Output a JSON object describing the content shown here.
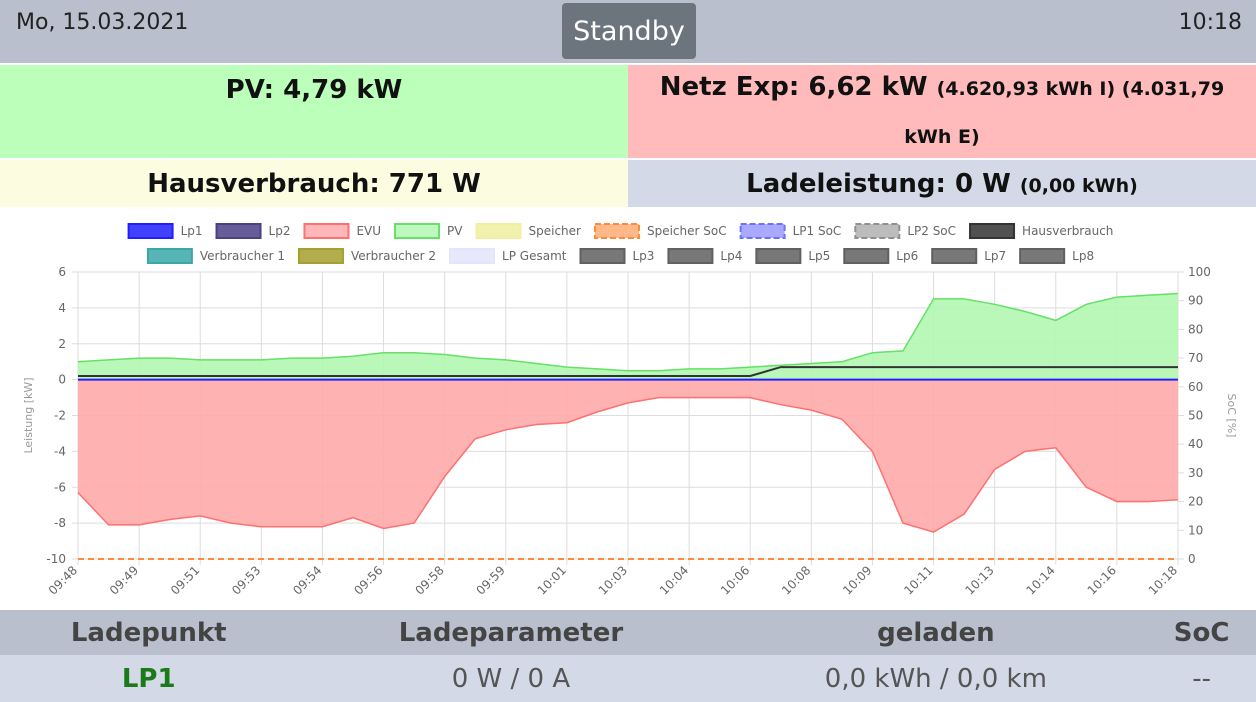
{
  "header": {
    "date": "Mo, 15.03.2021",
    "status": "Standby",
    "time": "10:18"
  },
  "tiles": {
    "pv": "PV: 4,79 kW",
    "netz": {
      "main": "Netz Exp: 6,62 kW",
      "detail": "(4.620,93 kWh I) (4.031,79 kWh E)"
    },
    "haus": "Hausverbrauch: 771 W",
    "lade": {
      "main": "Ladeleistung: 0 W",
      "detail": "(0,00 kWh)"
    }
  },
  "chart_data": {
    "type": "line",
    "ylabel": "Leistung [kW]",
    "y2label": "SoC [%]",
    "categories": [
      "09:48",
      null,
      "09:49",
      null,
      "09:51",
      null,
      "09:53",
      null,
      "09:54",
      null,
      "09:56",
      null,
      "09:58",
      null,
      "09:59",
      null,
      "10:01",
      null,
      "10:03",
      null,
      "10:04",
      null,
      "10:06",
      null,
      "10:08",
      null,
      "10:09",
      null,
      "10:11",
      null,
      "10:13",
      null,
      "10:14",
      null,
      "10:16",
      null,
      "10:18"
    ],
    "ylim": [
      -10,
      6
    ],
    "yticks": [
      -10,
      -8,
      -6,
      -4,
      -2,
      0,
      2,
      4,
      6
    ],
    "y2lim": [
      0,
      100
    ],
    "y2ticks": [
      0,
      10,
      20,
      30,
      40,
      50,
      60,
      70,
      80,
      90,
      100
    ],
    "grid": true,
    "series": [
      {
        "name": "Lp1",
        "color": "#2020ff",
        "style": "line",
        "values": [
          0,
          0,
          0,
          0,
          0,
          0,
          0,
          0,
          0,
          0,
          0,
          0,
          0,
          0,
          0,
          0,
          0,
          0,
          0,
          0,
          0,
          0,
          0,
          0,
          0,
          0,
          0,
          0,
          0,
          0,
          0,
          0,
          0,
          0,
          0,
          0,
          0
        ]
      },
      {
        "name": "Lp2",
        "color": "#4b3f86"
      },
      {
        "name": "EVU",
        "color": "#ff7070",
        "fill": "#ffaaaa",
        "style": "area",
        "values": [
          -6.3,
          -8.1,
          -8.1,
          -7.8,
          -7.6,
          -8.0,
          -8.2,
          -8.2,
          -8.2,
          -7.7,
          -8.3,
          -8.0,
          -5.4,
          -3.3,
          -2.8,
          -2.5,
          -2.4,
          -1.8,
          -1.3,
          -1.0,
          -1.0,
          -1.0,
          -1.0,
          -1.4,
          -1.7,
          -2.2,
          -4.0,
          -8.0,
          -8.5,
          -7.5,
          -5.0,
          -4.0,
          -3.8,
          -6.0,
          -6.8,
          -6.8,
          -6.7
        ]
      },
      {
        "name": "PV",
        "color": "#66e066",
        "fill": "#b3f7b3",
        "style": "area",
        "values": [
          1.0,
          1.1,
          1.2,
          1.2,
          1.1,
          1.1,
          1.1,
          1.2,
          1.2,
          1.3,
          1.5,
          1.5,
          1.4,
          1.2,
          1.1,
          0.9,
          0.7,
          0.6,
          0.5,
          0.5,
          0.6,
          0.6,
          0.7,
          0.8,
          0.9,
          1.0,
          1.5,
          1.6,
          4.5,
          4.5,
          4.2,
          3.8,
          3.3,
          4.2,
          4.6,
          4.7,
          4.8
        ]
      },
      {
        "name": "Speicher",
        "color": "#f0f0a0"
      },
      {
        "name": "Speicher SoC",
        "color": "#ff8a3a",
        "dashed": true,
        "style": "line",
        "axis": "y2",
        "values": [
          0,
          0,
          0,
          0,
          0,
          0,
          0,
          0,
          0,
          0,
          0,
          0,
          0,
          0,
          0,
          0,
          0,
          0,
          0,
          0,
          0,
          0,
          0,
          0,
          0,
          0,
          0,
          0,
          0,
          0,
          0,
          0,
          0,
          0,
          0,
          0,
          0
        ]
      },
      {
        "name": "LP1 SoC",
        "color": "#6f6fff",
        "dashed": true
      },
      {
        "name": "LP2 SoC",
        "color": "#909090",
        "dashed": true
      },
      {
        "name": "Hausverbrauch",
        "color": "#333333",
        "style": "line",
        "values": [
          0.2,
          0.2,
          0.2,
          0.2,
          0.2,
          0.2,
          0.2,
          0.2,
          0.2,
          0.2,
          0.2,
          0.2,
          0.2,
          0.2,
          0.2,
          0.2,
          0.2,
          0.2,
          0.2,
          0.2,
          0.2,
          0.2,
          0.2,
          0.7,
          0.7,
          0.7,
          0.7,
          0.7,
          0.7,
          0.7,
          0.7,
          0.7,
          0.7,
          0.7,
          0.7,
          0.7,
          0.7
        ]
      },
      {
        "name": "Verbraucher 1",
        "color": "#3aa8a8"
      },
      {
        "name": "Verbraucher 2",
        "color": "#a5a030"
      },
      {
        "name": "LP Gesamt",
        "color": "#e4e4fb"
      },
      {
        "name": "Lp3",
        "color": "#606060"
      },
      {
        "name": "Lp4",
        "color": "#606060"
      },
      {
        "name": "Lp5",
        "color": "#606060"
      },
      {
        "name": "Lp6",
        "color": "#606060"
      },
      {
        "name": "Lp7",
        "color": "#606060"
      },
      {
        "name": "Lp8",
        "color": "#606060"
      }
    ]
  },
  "table": {
    "columns": [
      "Ladepunkt",
      "Ladeparameter",
      "geladen",
      "SoC"
    ],
    "rows": [
      [
        "LP1",
        "0 W / 0 A",
        "0,0 kWh / 0,0 km",
        "--"
      ]
    ]
  }
}
